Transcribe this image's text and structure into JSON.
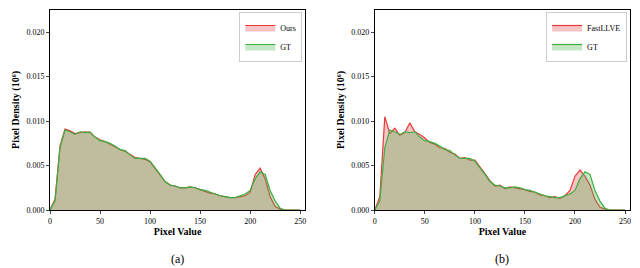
{
  "chart_data": [
    {
      "type": "area",
      "title": "(a)",
      "x_label": "Pixel Value",
      "y_label": "Pixel Density (10⁶)",
      "legend": "upper right",
      "x": [
        0,
        5,
        10,
        15,
        20,
        25,
        30,
        35,
        40,
        45,
        50,
        55,
        60,
        65,
        70,
        75,
        80,
        85,
        90,
        95,
        100,
        105,
        110,
        115,
        120,
        125,
        130,
        135,
        140,
        145,
        150,
        155,
        160,
        165,
        170,
        175,
        180,
        185,
        190,
        195,
        200,
        205,
        210,
        215,
        220,
        225,
        230,
        235,
        240,
        245,
        250
      ],
      "series": [
        {
          "name": "Ours",
          "color": "#e8393a",
          "values": [
            0,
            0.0012,
            0.0072,
            0.0091,
            0.0089,
            0.0086,
            0.0087,
            0.0088,
            0.0087,
            0.0082,
            0.0079,
            0.0077,
            0.0074,
            0.0071,
            0.0068,
            0.0066,
            0.0062,
            0.0059,
            0.0058,
            0.0057,
            0.0054,
            0.0047,
            0.0039,
            0.0032,
            0.0028,
            0.0027,
            0.0025,
            0.0025,
            0.0026,
            0.0025,
            0.0023,
            0.0021,
            0.0019,
            0.0018,
            0.0016,
            0.0015,
            0.0014,
            0.0014,
            0.0015,
            0.0016,
            0.002,
            0.004,
            0.0047,
            0.0035,
            0.0015,
            0.0004,
            0.0001,
            0,
            0,
            0,
            0
          ]
        },
        {
          "name": "GT",
          "color": "#3cb043",
          "values": [
            0,
            0.001,
            0.007,
            0.009,
            0.0088,
            0.0085,
            0.0088,
            0.0087,
            0.0088,
            0.0082,
            0.0078,
            0.0077,
            0.0075,
            0.0072,
            0.0068,
            0.0067,
            0.0062,
            0.0058,
            0.0058,
            0.0058,
            0.0055,
            0.0048,
            0.004,
            0.0032,
            0.0028,
            0.0027,
            0.0025,
            0.0025,
            0.0026,
            0.0025,
            0.0023,
            0.0022,
            0.002,
            0.0018,
            0.0016,
            0.0015,
            0.0014,
            0.0014,
            0.0016,
            0.0018,
            0.0022,
            0.0035,
            0.0043,
            0.004,
            0.0022,
            0.001,
            0.0002,
            0,
            0,
            0,
            0
          ]
        }
      ],
      "xlim": [
        0,
        255
      ],
      "ylim": [
        0,
        0.0225
      ],
      "xticks": [
        0,
        50,
        100,
        150,
        200,
        250
      ],
      "yticks": [
        {
          "value": 0,
          "label": "0.000"
        },
        {
          "value": 0.005,
          "label": "0.005"
        },
        {
          "value": 0.01,
          "label": "0.010"
        },
        {
          "value": 0.015,
          "label": "0.015"
        },
        {
          "value": 0.02,
          "label": "0.020"
        }
      ]
    },
    {
      "type": "area",
      "title": "(b)",
      "x_label": "Pixel Value",
      "y_label": "Pixel Density (10⁶)",
      "legend": "upper right",
      "x": [
        0,
        5,
        10,
        15,
        20,
        25,
        30,
        35,
        40,
        45,
        50,
        55,
        60,
        65,
        70,
        75,
        80,
        85,
        90,
        95,
        100,
        105,
        110,
        115,
        120,
        125,
        130,
        135,
        140,
        145,
        150,
        155,
        160,
        165,
        170,
        175,
        180,
        185,
        190,
        195,
        200,
        205,
        210,
        215,
        220,
        225,
        230,
        235,
        240,
        245,
        250
      ],
      "series": [
        {
          "name": "FastLLVE",
          "color": "#e8393a",
          "values": [
            0,
            0.0015,
            0.0105,
            0.0086,
            0.0092,
            0.0084,
            0.0087,
            0.0098,
            0.0088,
            0.0085,
            0.0081,
            0.0076,
            0.0074,
            0.007,
            0.0069,
            0.0065,
            0.0063,
            0.0058,
            0.0059,
            0.0056,
            0.0056,
            0.0049,
            0.0041,
            0.0033,
            0.0027,
            0.0028,
            0.0024,
            0.0026,
            0.0025,
            0.0024,
            0.0023,
            0.0021,
            0.002,
            0.0017,
            0.0016,
            0.0014,
            0.0015,
            0.0013,
            0.0016,
            0.0022,
            0.0038,
            0.0045,
            0.0038,
            0.0028,
            0.0012,
            0.0003,
            0.0001,
            0,
            0,
            0,
            0
          ]
        },
        {
          "name": "GT",
          "color": "#3cb043",
          "values": [
            0,
            0.001,
            0.007,
            0.009,
            0.0088,
            0.0085,
            0.0088,
            0.0087,
            0.0088,
            0.0082,
            0.0078,
            0.0077,
            0.0075,
            0.0072,
            0.0068,
            0.0067,
            0.0062,
            0.0058,
            0.0058,
            0.0058,
            0.0055,
            0.0048,
            0.004,
            0.0032,
            0.0028,
            0.0027,
            0.0025,
            0.0025,
            0.0026,
            0.0025,
            0.0023,
            0.0022,
            0.002,
            0.0018,
            0.0016,
            0.0015,
            0.0014,
            0.0014,
            0.0016,
            0.0018,
            0.0022,
            0.0035,
            0.0043,
            0.004,
            0.0022,
            0.001,
            0.0002,
            0,
            0,
            0,
            0
          ]
        }
      ],
      "xlim": [
        0,
        255
      ],
      "ylim": [
        0,
        0.0225
      ],
      "xticks": [
        0,
        50,
        100,
        150,
        200,
        250
      ],
      "yticks": [
        {
          "value": 0,
          "label": "0.000"
        },
        {
          "value": 0.005,
          "label": "0.005"
        },
        {
          "value": 0.01,
          "label": "0.010"
        },
        {
          "value": 0.015,
          "label": "0.015"
        },
        {
          "value": 0.02,
          "label": "0.020"
        }
      ]
    }
  ]
}
